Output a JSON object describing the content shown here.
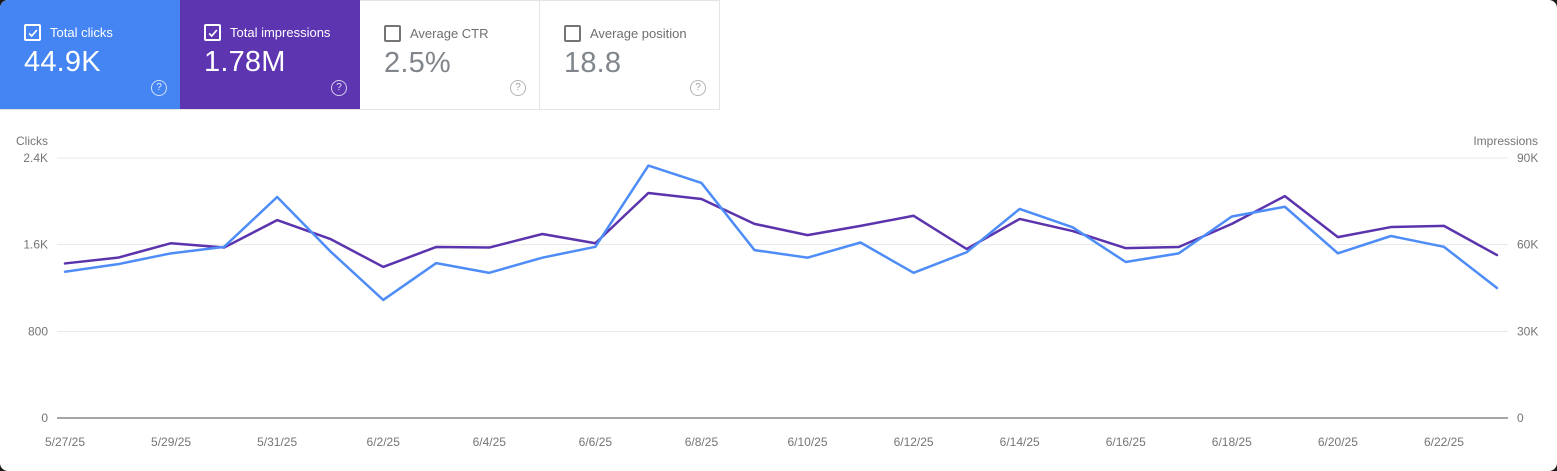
{
  "metric_cards": [
    {
      "label": "Total clicks",
      "value": "44.9K",
      "checked": true,
      "bg_color": "#4484f3",
      "help_icon": "?"
    },
    {
      "label": "Total impressions",
      "value": "1.78M",
      "checked": true,
      "bg_color": "#5e35b1",
      "help_icon": "?"
    },
    {
      "label": "Average CTR",
      "value": "2.5%",
      "checked": false,
      "bg_color": "#ffffff",
      "help_icon": "?"
    },
    {
      "label": "Average position",
      "value": "18.8",
      "checked": false,
      "bg_color": "#ffffff",
      "help_icon": "?"
    }
  ],
  "chart_data": {
    "type": "line",
    "x": [
      "5/27/25",
      "5/28/25",
      "5/29/25",
      "5/30/25",
      "5/31/25",
      "6/1/25",
      "6/2/25",
      "6/3/25",
      "6/4/25",
      "6/5/25",
      "6/6/25",
      "6/7/25",
      "6/8/25",
      "6/9/25",
      "6/10/25",
      "6/11/25",
      "6/12/25",
      "6/13/25",
      "6/14/25",
      "6/15/25",
      "6/16/25",
      "6/17/25",
      "6/18/25",
      "6/19/25",
      "6/20/25",
      "6/21/25",
      "6/22/25",
      "6/23/25"
    ],
    "x_label_every": 2,
    "series": [
      {
        "name": "Impressions",
        "axis": "right",
        "color": "#5b34ad",
        "values": [
          53500,
          55500,
          60500,
          59000,
          68500,
          62000,
          52300,
          59200,
          59000,
          63700,
          60500,
          77900,
          75800,
          67200,
          63300,
          66500,
          70000,
          58500,
          68900,
          64700,
          58800,
          59200,
          67200,
          76800,
          62600,
          66100,
          66500,
          56400
        ]
      },
      {
        "name": "Clicks",
        "axis": "left",
        "color": "#4e8df7",
        "values": [
          1350,
          1420,
          1520,
          1580,
          2040,
          1540,
          1090,
          1430,
          1340,
          1480,
          1580,
          2330,
          2170,
          1550,
          1480,
          1620,
          1340,
          1530,
          1930,
          1760,
          1440,
          1520,
          1860,
          1950,
          1520,
          1680,
          1580,
          1200
        ]
      }
    ],
    "left_axis": {
      "label": "Clicks",
      "min": 0,
      "max": 2400,
      "ticks": [
        "0",
        "800",
        "1.6K",
        "2.4K"
      ]
    },
    "right_axis": {
      "label": "Impressions",
      "min": 0,
      "max": 90000,
      "ticks": [
        "0",
        "30K",
        "60K",
        "90K"
      ]
    },
    "grid": "horizontal",
    "legend_position": "none",
    "grid_color": "#e8e8e8",
    "axis_line_color": "#a6a6a6",
    "tick_color": "#757575"
  }
}
